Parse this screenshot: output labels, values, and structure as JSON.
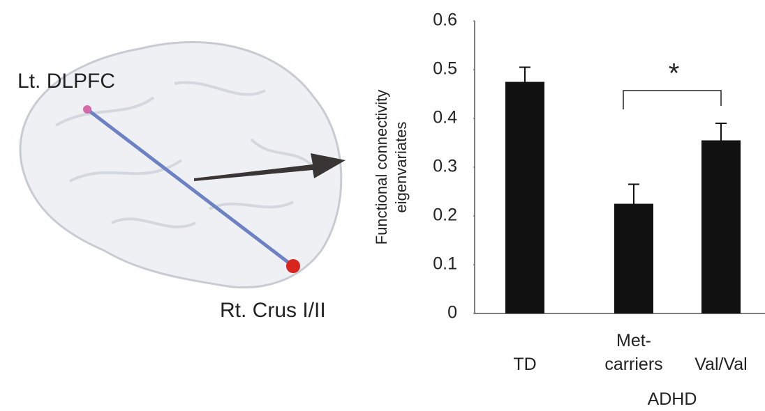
{
  "brain_labels": [
    "Lt. DLPFC",
    "Rt. Crus I/II"
  ],
  "chart_data": {
    "type": "bar",
    "ylabel": [
      "Functional connectivity",
      "eigenvariates"
    ],
    "categories": [
      "TD",
      "Met-carriers",
      "Val/Val"
    ],
    "group_label": "ADHD",
    "values": [
      0.475,
      0.225,
      0.355
    ],
    "errors": [
      0.03,
      0.04,
      0.035
    ],
    "color": "#111111",
    "significance": "*",
    "ylim": [
      0,
      0.6
    ],
    "yticks": [
      0,
      0.1,
      0.2,
      0.3,
      0.4,
      0.5,
      0.6
    ]
  }
}
